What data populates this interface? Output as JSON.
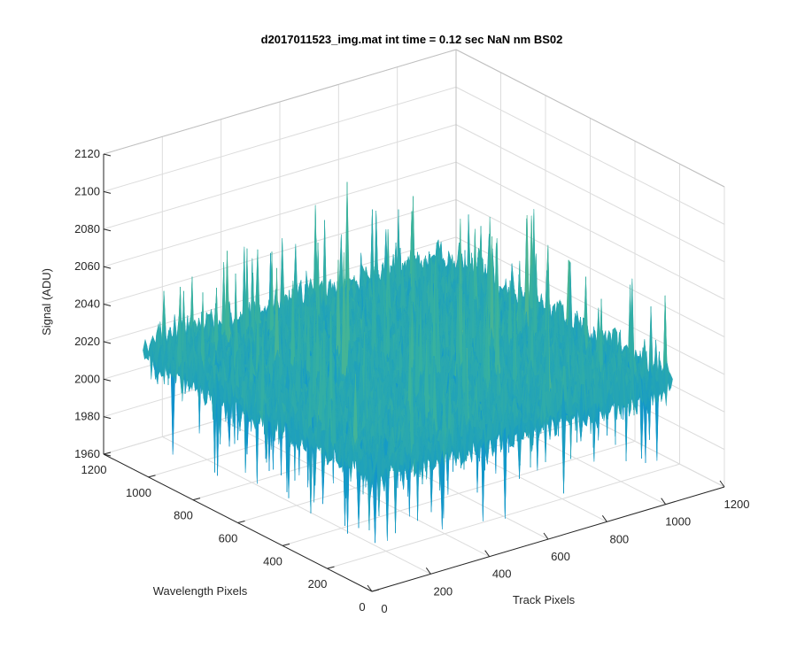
{
  "chart_data": {
    "type": "surface",
    "title": "d2017011523_img.mat int time = 0.12 sec  NaN nm BS02",
    "xlabel": "Track Pixels",
    "ylabel": "Wavelength Pixels",
    "zlabel": "Signal (ADU)",
    "xlim": [
      0,
      1200
    ],
    "ylim": [
      0,
      1200
    ],
    "zlim": [
      1960,
      2120
    ],
    "xticks": [
      0,
      200,
      400,
      600,
      800,
      1000,
      1200
    ],
    "yticks": [
      0,
      200,
      400,
      600,
      800,
      1000,
      1200
    ],
    "zticks": [
      1960,
      1980,
      2000,
      2020,
      2040,
      2060,
      2080,
      2100,
      2120
    ],
    "grid": true,
    "colormap": "parula",
    "surface_extent": {
      "x": [
        0,
        1024
      ],
      "y": [
        0,
        1024
      ]
    },
    "surface_stats": {
      "mean": 2025,
      "noise_sd": 12,
      "min": 1975,
      "max": 2115
    }
  }
}
